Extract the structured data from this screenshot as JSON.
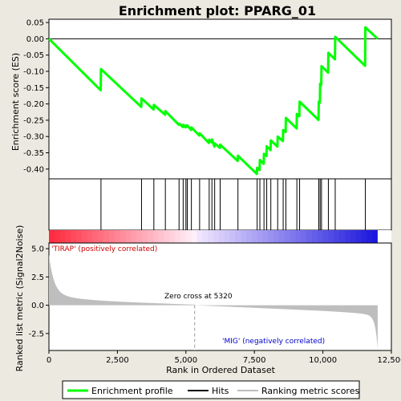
{
  "chart_data": {
    "type": "line",
    "title": "Enrichment plot: PPARG_01",
    "xlabel": "Rank in Ordered Dataset",
    "ylabel_top": "Enrichment score (ES)",
    "ylabel_bottom": "Ranked list metric (Signal2Noise)",
    "x_range": [
      0,
      12500
    ],
    "x_ticks": [
      0,
      2500,
      5000,
      7500,
      10000,
      12500
    ],
    "x_tick_labels": [
      "0",
      "2,500",
      "5,000",
      "7,500",
      "10,000",
      "12,500"
    ],
    "es_ylim": [
      -0.43,
      0.06
    ],
    "es_ticks": [
      0.05,
      0.0,
      -0.05,
      -0.1,
      -0.15,
      -0.2,
      -0.25,
      -0.3,
      -0.35,
      -0.4
    ],
    "es_tick_labels": [
      "0.05",
      "0.00",
      "-0.05",
      "-0.10",
      "-0.15",
      "-0.20",
      "-0.25",
      "-0.30",
      "-0.35",
      "-0.40"
    ],
    "metric_ylim": [
      -4.0,
      5.5
    ],
    "metric_ticks": [
      5.0,
      2.5,
      0.0,
      -2.5
    ],
    "metric_tick_labels": [
      "5.0",
      "2.5",
      "0.0",
      "-2.5"
    ],
    "n_genes": 12000,
    "zero_cross": 5320,
    "zero_cross_label": "Zero cross at 5320",
    "positive_label": "'TIRAP' (positively correlated)",
    "negative_label": "'MIG' (negatively correlated)",
    "hits": [
      1900,
      3380,
      3830,
      4250,
      4750,
      4900,
      5000,
      5050,
      5200,
      5500,
      5850,
      5950,
      6050,
      6250,
      6900,
      7600,
      7700,
      7850,
      7950,
      8100,
      8350,
      8550,
      8650,
      9050,
      9150,
      9850,
      9900,
      9950,
      10200,
      10450,
      11550
    ],
    "series": [
      {
        "name": "Enrichment profile",
        "color": "#00ff00",
        "x": [
          0,
          1890,
          1900,
          3370,
          3380,
          3820,
          3830,
          4240,
          4250,
          4740,
          4750,
          4890,
          4900,
          4990,
          5000,
          5040,
          5050,
          5190,
          5200,
          5490,
          5500,
          5840,
          5850,
          5940,
          5950,
          6040,
          6050,
          6240,
          6250,
          6890,
          6900,
          7590,
          7600,
          7690,
          7700,
          7840,
          7850,
          7940,
          7950,
          8090,
          8100,
          8340,
          8350,
          8540,
          8550,
          8640,
          8650,
          9040,
          9050,
          9140,
          9150,
          9840,
          9850,
          9890,
          9900,
          9940,
          9950,
          10190,
          10200,
          10440,
          10450,
          11540,
          11550,
          12000
        ],
        "y": [
          0.0,
          -0.158,
          -0.093,
          -0.209,
          -0.183,
          -0.217,
          -0.203,
          -0.233,
          -0.222,
          -0.264,
          -0.26,
          -0.271,
          -0.264,
          -0.272,
          -0.266,
          -0.27,
          -0.266,
          -0.28,
          -0.272,
          -0.297,
          -0.29,
          -0.32,
          -0.31,
          -0.318,
          -0.309,
          -0.331,
          -0.321,
          -0.335,
          -0.325,
          -0.375,
          -0.359,
          -0.415,
          -0.396,
          -0.403,
          -0.372,
          -0.384,
          -0.353,
          -0.36,
          -0.33,
          -0.342,
          -0.312,
          -0.331,
          -0.3,
          -0.314,
          -0.28,
          -0.286,
          -0.243,
          -0.275,
          -0.231,
          -0.238,
          -0.193,
          -0.249,
          -0.193,
          -0.196,
          -0.138,
          -0.142,
          -0.084,
          -0.104,
          -0.043,
          -0.063,
          0.006,
          -0.083,
          0.035,
          0.0
        ]
      }
    ],
    "legend": [
      "Enrichment profile",
      "Hits",
      "Ranking metric scores"
    ],
    "legend_placement": "bottom"
  },
  "colors": {
    "background": "#eceae0",
    "plot_bg": "#ffffff",
    "es_line": "#00ff00",
    "hit_line": "#000000",
    "metric_fill": "#bebebe",
    "zero_cross_line": "#9a9a9a",
    "positive_label": "#cc0000",
    "negative_label": "#0000cc"
  }
}
